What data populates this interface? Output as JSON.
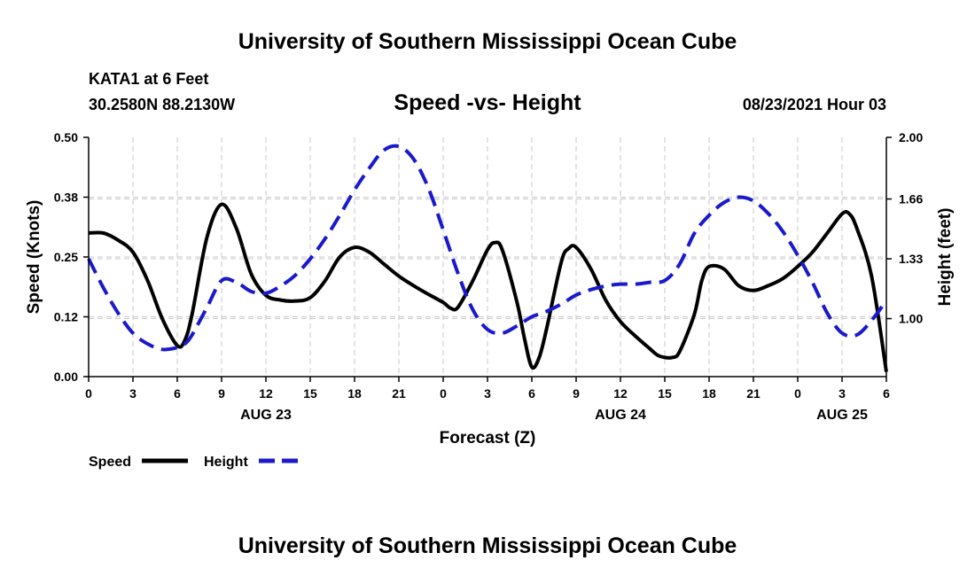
{
  "page": {
    "top_title": "University of Southern Mississippi Ocean Cube",
    "bottom_title": "University of Southern Mississippi Ocean Cube",
    "station": "KATA1 at 6 Feet",
    "coords": "30.2580N  88.2130W",
    "chart_title": "Speed -vs- Height",
    "issued": "08/23/2021 Hour 03"
  },
  "chart_data": {
    "type": "line",
    "title": "Speed -vs- Height",
    "xlabel": "Forecast (Z)",
    "ylabel": "Speed (Knots)",
    "y2label": "Height (feet)",
    "xlim": [
      0,
      54
    ],
    "ylim": [
      0,
      0.5
    ],
    "y2lim": [
      0.68,
      2.0
    ],
    "x_ticks": [
      {
        "x": 0,
        "label": "0"
      },
      {
        "x": 3,
        "label": "3"
      },
      {
        "x": 6,
        "label": "6"
      },
      {
        "x": 9,
        "label": "9"
      },
      {
        "x": 12,
        "label": "12"
      },
      {
        "x": 15,
        "label": "15"
      },
      {
        "x": 18,
        "label": "18"
      },
      {
        "x": 21,
        "label": "21"
      },
      {
        "x": 24,
        "label": "0"
      },
      {
        "x": 27,
        "label": "3"
      },
      {
        "x": 30,
        "label": "6"
      },
      {
        "x": 33,
        "label": "9"
      },
      {
        "x": 36,
        "label": "12"
      },
      {
        "x": 39,
        "label": "15"
      },
      {
        "x": 42,
        "label": "18"
      },
      {
        "x": 45,
        "label": "21"
      },
      {
        "x": 48,
        "label": "0"
      },
      {
        "x": 51,
        "label": "3"
      },
      {
        "x": 54,
        "label": "6"
      }
    ],
    "date_labels": [
      {
        "x": 12,
        "label": "AUG 23"
      },
      {
        "x": 36,
        "label": "AUG 24"
      },
      {
        "x": 51,
        "label": "AUG 25"
      }
    ],
    "y_ticks": [
      {
        "v": 0.0,
        "label": "0.00"
      },
      {
        "v": 0.125,
        "label": "0.12"
      },
      {
        "v": 0.25,
        "label": "0.25"
      },
      {
        "v": 0.375,
        "label": "0.38"
      },
      {
        "v": 0.5,
        "label": "0.50"
      }
    ],
    "y2_ticks": [
      {
        "v": 1.0,
        "label": "1.00"
      },
      {
        "v": 1.33,
        "label": "1.33"
      },
      {
        "v": 1.66,
        "label": "1.66"
      },
      {
        "v": 2.0,
        "label": "2.00"
      }
    ],
    "grid": true,
    "legend": {
      "placement": "bottom-left"
    },
    "series": [
      {
        "name": "Speed",
        "axis": "left",
        "color": "#000000",
        "dash": "solid",
        "x": [
          0,
          1,
          2,
          3,
          4,
          5,
          6,
          6.5,
          7,
          8,
          9,
          10,
          11,
          12,
          13,
          14,
          15,
          16,
          17,
          18,
          19,
          20,
          21,
          22,
          23,
          24,
          24.5,
          25,
          26,
          27,
          27.5,
          28,
          29,
          29.5,
          30,
          30.5,
          31,
          32,
          32.5,
          33,
          34,
          35,
          36,
          37,
          38,
          38.5,
          39,
          39.5,
          40,
          41,
          41.5,
          42,
          43,
          44,
          45,
          46,
          47,
          48,
          49,
          50,
          51,
          51.5,
          52,
          53,
          54
        ],
        "y": [
          0.3,
          0.3,
          0.285,
          0.26,
          0.2,
          0.12,
          0.065,
          0.075,
          0.13,
          0.29,
          0.36,
          0.31,
          0.215,
          0.17,
          0.16,
          0.158,
          0.165,
          0.2,
          0.25,
          0.27,
          0.26,
          0.235,
          0.21,
          0.19,
          0.172,
          0.155,
          0.143,
          0.145,
          0.2,
          0.265,
          0.28,
          0.265,
          0.155,
          0.08,
          0.02,
          0.04,
          0.1,
          0.24,
          0.268,
          0.27,
          0.225,
          0.16,
          0.115,
          0.085,
          0.058,
          0.045,
          0.04,
          0.04,
          0.052,
          0.13,
          0.2,
          0.23,
          0.225,
          0.19,
          0.18,
          0.19,
          0.205,
          0.23,
          0.26,
          0.3,
          0.34,
          0.34,
          0.31,
          0.21,
          0.01
        ]
      },
      {
        "name": "Height",
        "axis": "right",
        "color": "#1a1acc",
        "dash": "dashed",
        "x": [
          0,
          1,
          2,
          3,
          4,
          5,
          6,
          6.5,
          7,
          8,
          9,
          10,
          11,
          12,
          13,
          14,
          15,
          16,
          17,
          18,
          19,
          20,
          21,
          22,
          23,
          24,
          25,
          26,
          27,
          28,
          29,
          30,
          31,
          32,
          33,
          34,
          35,
          36,
          37,
          38,
          39,
          40,
          41,
          42,
          43,
          44,
          45,
          46,
          47,
          48,
          49,
          50,
          51,
          52,
          53,
          54
        ],
        "y": [
          1.33,
          1.17,
          1.03,
          0.92,
          0.86,
          0.83,
          0.84,
          0.86,
          0.91,
          1.06,
          1.21,
          1.2,
          1.15,
          1.14,
          1.18,
          1.24,
          1.33,
          1.44,
          1.57,
          1.71,
          1.83,
          1.93,
          1.95,
          1.88,
          1.72,
          1.49,
          1.25,
          1.05,
          0.94,
          0.92,
          0.96,
          1.01,
          1.04,
          1.08,
          1.13,
          1.16,
          1.18,
          1.19,
          1.19,
          1.2,
          1.21,
          1.3,
          1.47,
          1.57,
          1.64,
          1.67,
          1.65,
          1.58,
          1.48,
          1.35,
          1.2,
          1.03,
          0.92,
          0.91,
          0.99,
          1.1
        ]
      }
    ]
  }
}
